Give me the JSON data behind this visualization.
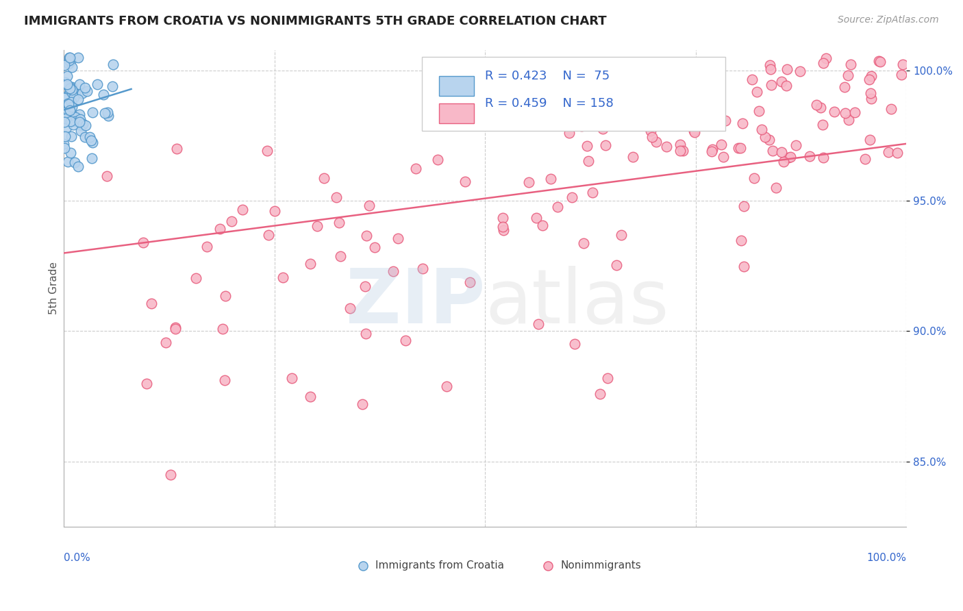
{
  "title": "IMMIGRANTS FROM CROATIA VS NONIMMIGRANTS 5TH GRADE CORRELATION CHART",
  "source": "Source: ZipAtlas.com",
  "ylabel": "5th Grade",
  "xlim": [
    0,
    1
  ],
  "ylim": [
    0.825,
    1.008
  ],
  "yticks": [
    0.85,
    0.9,
    0.95,
    1.0
  ],
  "ytick_labels": [
    "85.0%",
    "90.0%",
    "95.0%",
    "100.0%"
  ],
  "blue_R": 0.423,
  "blue_N": 75,
  "pink_R": 0.459,
  "pink_N": 158,
  "blue_color": "#b8d4ee",
  "blue_edge_color": "#5599cc",
  "pink_color": "#f8b8c8",
  "pink_edge_color": "#e86080",
  "legend_color": "#3366cc",
  "background_color": "#ffffff",
  "grid_color": "#cccccc",
  "title_color": "#222222",
  "pink_trend_start_y": 0.93,
  "pink_trend_end_y": 0.972,
  "blue_trend_start_y": 0.985,
  "blue_trend_end_y": 0.993
}
